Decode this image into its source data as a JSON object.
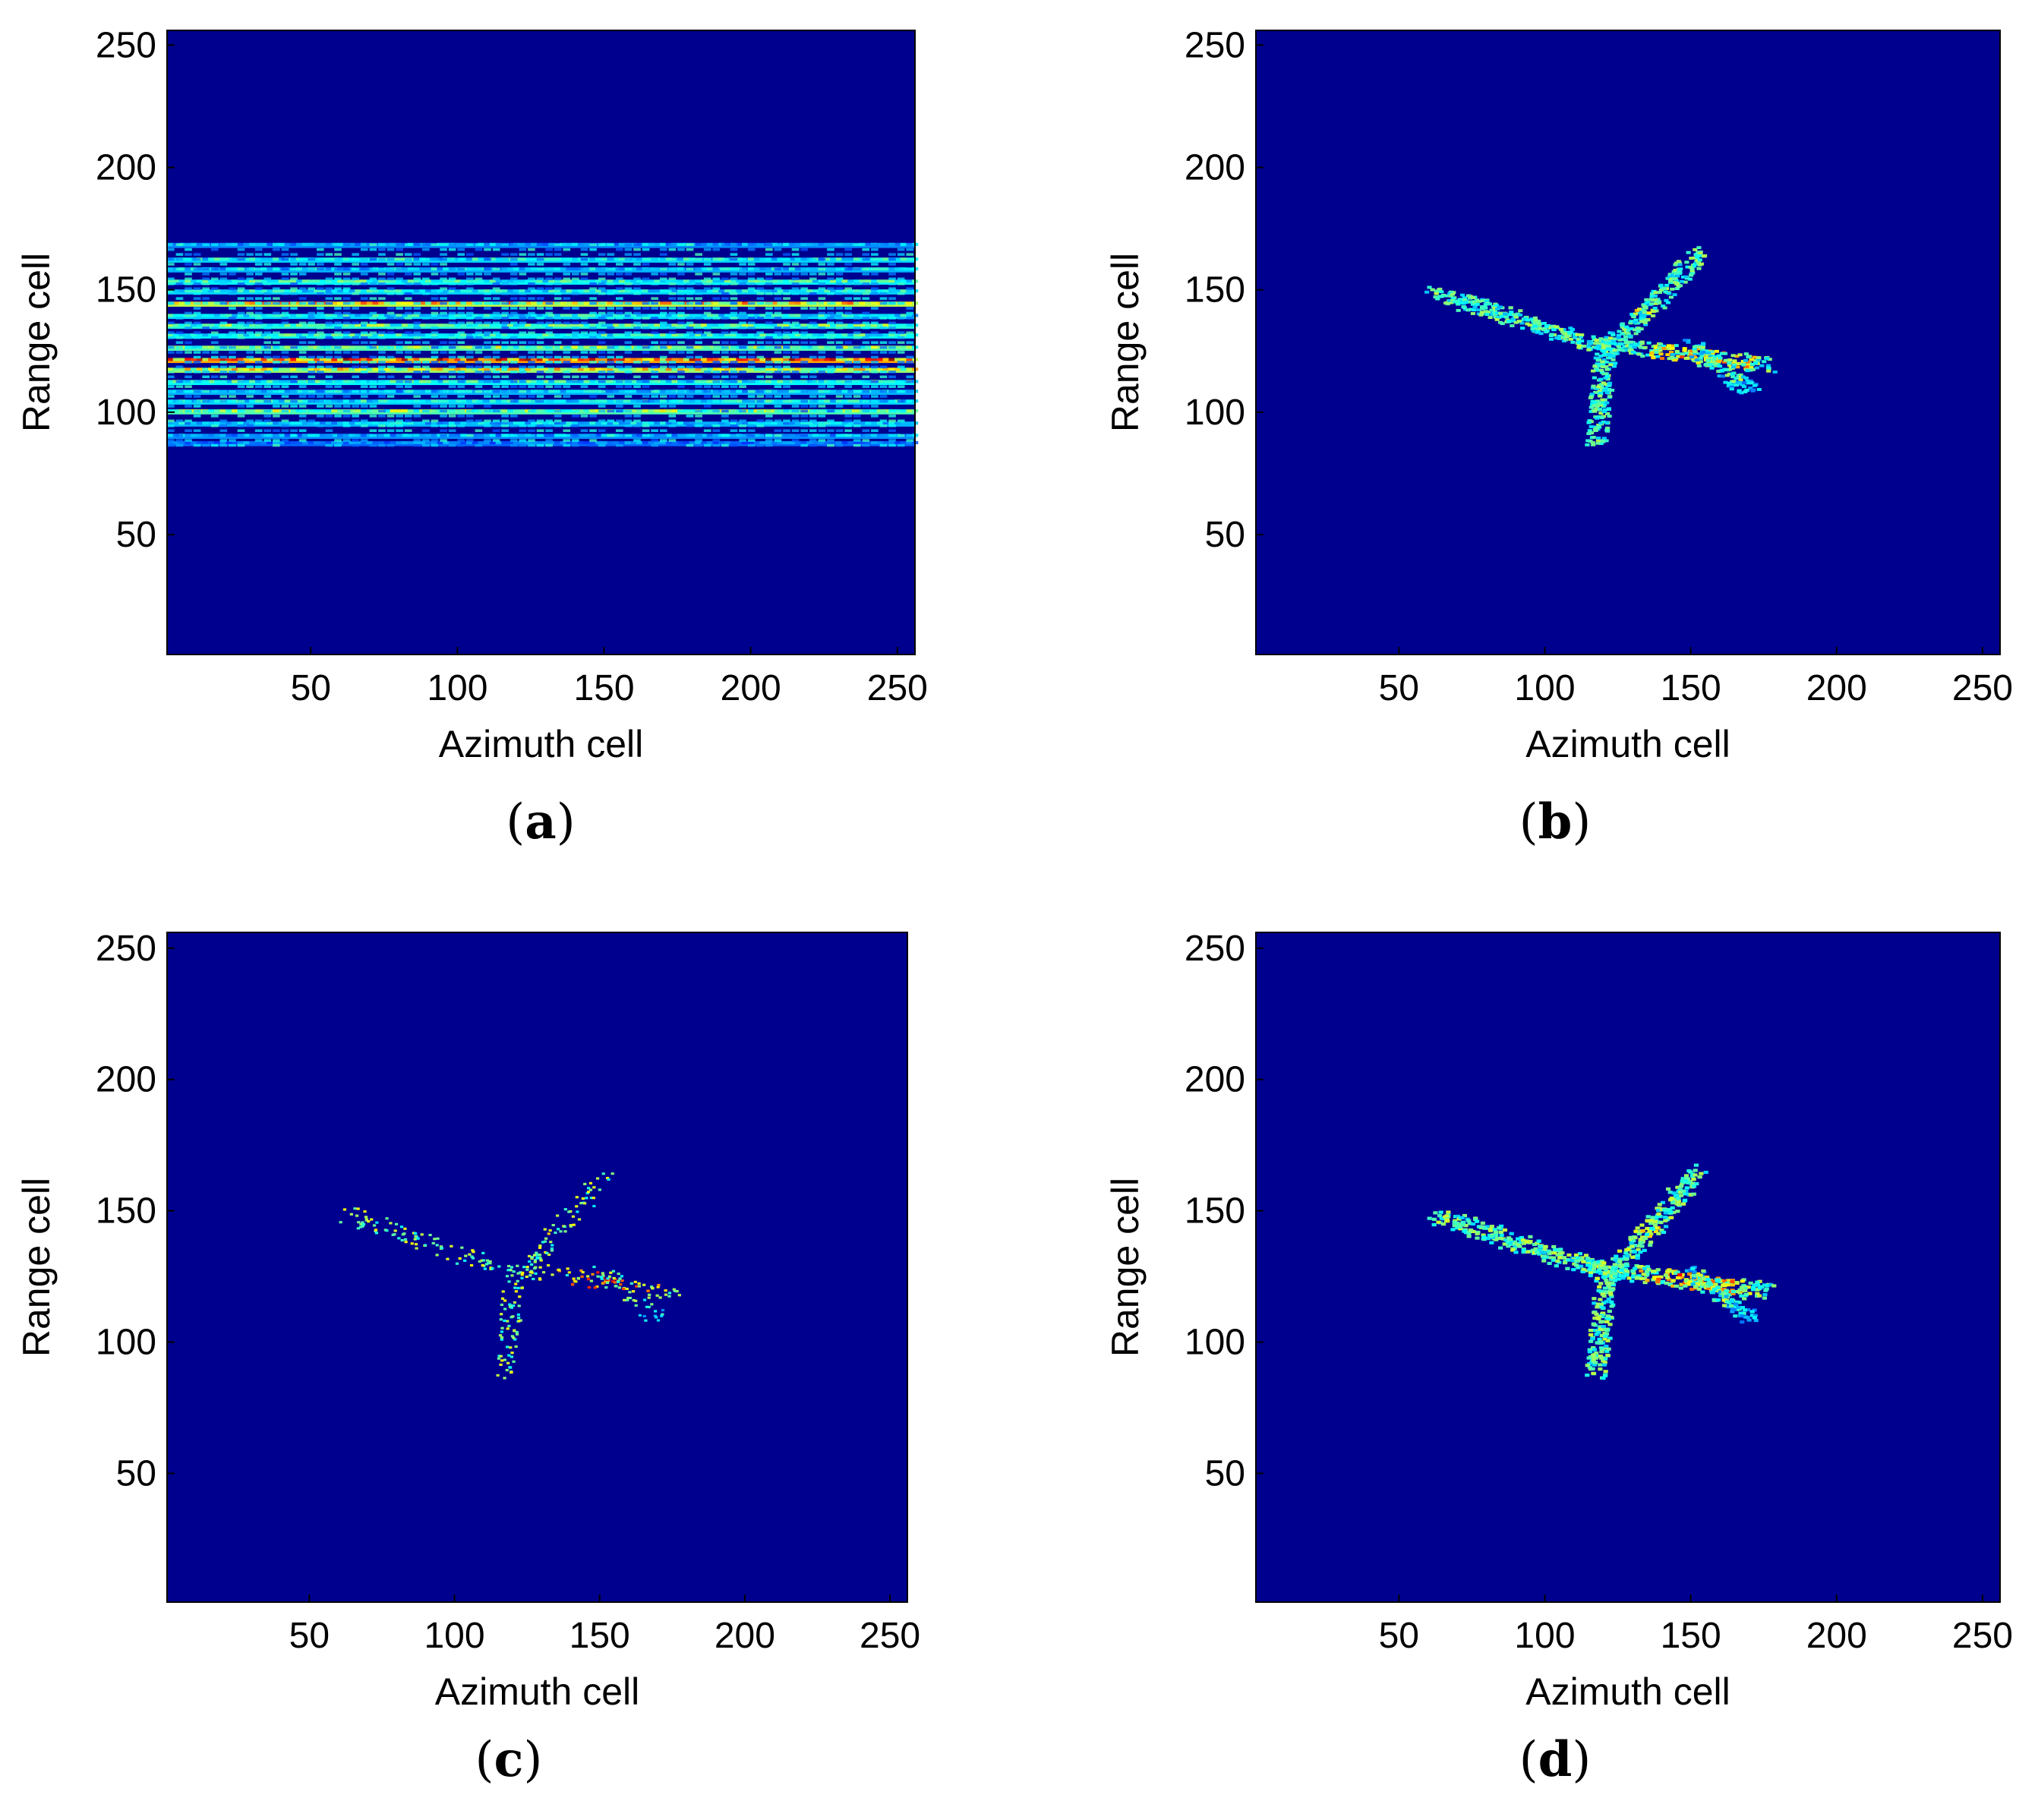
{
  "chart_data": [
    {
      "type": "heatmap",
      "panel": "a",
      "caption_open": "(",
      "caption_letter": "a",
      "caption_close": ")",
      "xlabel": "Azimuth cell",
      "ylabel": "Range cell",
      "xlim": [
        1,
        256
      ],
      "ylim": [
        1,
        256
      ],
      "xticks": [
        50,
        100,
        150,
        200,
        250
      ],
      "yticks": [
        50,
        100,
        150,
        200,
        250
      ],
      "colormap": "jet",
      "background_color": "#00008f",
      "content": "horizontal-stripes",
      "stripes": [
        {
          "range": 168,
          "intensity": 0.35
        },
        {
          "range": 162,
          "intensity": 0.45
        },
        {
          "range": 158,
          "intensity": 0.4
        },
        {
          "range": 153,
          "intensity": 0.5
        },
        {
          "range": 149,
          "intensity": 0.45
        },
        {
          "range": 144,
          "intensity": 0.75
        },
        {
          "range": 139,
          "intensity": 0.45
        },
        {
          "range": 135,
          "intensity": 0.55
        },
        {
          "range": 131,
          "intensity": 0.5
        },
        {
          "range": 126,
          "intensity": 0.6
        },
        {
          "range": 121,
          "intensity": 0.95
        },
        {
          "range": 117,
          "intensity": 0.7
        },
        {
          "range": 112,
          "intensity": 0.5
        },
        {
          "range": 108,
          "intensity": 0.4
        },
        {
          "range": 104,
          "intensity": 0.45
        },
        {
          "range": 100,
          "intensity": 0.6
        },
        {
          "range": 95,
          "intensity": 0.4
        },
        {
          "range": 90,
          "intensity": 0.35
        },
        {
          "range": 87,
          "intensity": 0.3
        }
      ]
    },
    {
      "type": "heatmap",
      "panel": "b",
      "caption_open": "(",
      "caption_letter": "b",
      "caption_close": ")",
      "xlabel": "Azimuth cell",
      "ylabel": "Range cell",
      "xlim": [
        1,
        256
      ],
      "ylim": [
        1,
        256
      ],
      "xticks": [
        50,
        100,
        150,
        200,
        250
      ],
      "yticks": [
        50,
        100,
        150,
        200,
        250
      ],
      "colormap": "jet",
      "background_color": "#00008f",
      "content": "aircraft",
      "style": "smooth",
      "peak_intensity": 0.85
    },
    {
      "type": "heatmap",
      "panel": "c",
      "caption_open": "(",
      "caption_letter": "c",
      "caption_close": ")",
      "xlabel": "Azimuth cell",
      "ylabel": "Range cell",
      "xlim": [
        1,
        256
      ],
      "ylim": [
        1,
        256
      ],
      "xticks": [
        50,
        100,
        150,
        200,
        250
      ],
      "yticks": [
        50,
        100,
        150,
        200,
        250
      ],
      "colormap": "jet",
      "background_color": "#00008f",
      "content": "aircraft",
      "style": "sparse",
      "peak_intensity": 1.0
    },
    {
      "type": "heatmap",
      "panel": "d",
      "caption_open": "(",
      "caption_letter": "d",
      "caption_close": ")",
      "xlabel": "Azimuth cell",
      "ylabel": "Range cell",
      "xlim": [
        1,
        256
      ],
      "ylim": [
        1,
        256
      ],
      "xticks": [
        50,
        100,
        150,
        200,
        250
      ],
      "yticks": [
        50,
        100,
        150,
        200,
        250
      ],
      "colormap": "jet",
      "background_color": "#00008f",
      "content": "aircraft",
      "style": "smooth",
      "peak_intensity": 0.9
    }
  ]
}
